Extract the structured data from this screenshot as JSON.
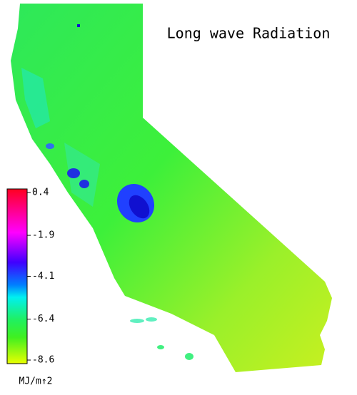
{
  "title": "Long wave Radiation",
  "colorbar": {
    "ticks": [
      0.4,
      -1.9,
      -4.1,
      -6.4,
      -8.6
    ],
    "unit": "MJ/m↑2"
  }
}
